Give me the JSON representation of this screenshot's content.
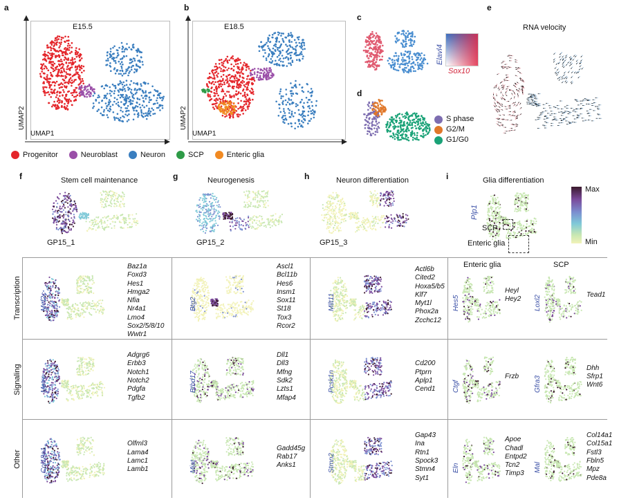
{
  "panels": {
    "a": {
      "letter": "a",
      "stage": "E15.5"
    },
    "b": {
      "letter": "b",
      "stage": "E18.5"
    },
    "c": {
      "letter": "c",
      "gene_y": "Elavl4",
      "gene_x": "Sox10"
    },
    "d": {
      "letter": "d",
      "phases": [
        {
          "name": "S phase",
          "color": "#7d6db0"
        },
        {
          "name": "G2/M",
          "color": "#e0782a"
        },
        {
          "name": "G1/G0",
          "color": "#1aa277"
        }
      ]
    },
    "e": {
      "letter": "e",
      "title": "RNA velocity"
    },
    "f": {
      "letter": "f",
      "title": "Stem cell maintenance",
      "program": "GP15_1"
    },
    "g": {
      "letter": "g",
      "title": "Neurogenesis",
      "program": "GP15_2"
    },
    "h": {
      "letter": "h",
      "title": "Neuron differentiation",
      "program": "GP15_3"
    },
    "i": {
      "letter": "i",
      "title": "Glia differentiation",
      "gene": "Plp1",
      "scp_label": "SCP",
      "eg_label": "Enteric glia"
    }
  },
  "axes": {
    "x": "UMAP1",
    "y": "UMAP2"
  },
  "legend": [
    {
      "name": "Progenitor",
      "color": "#e4262b"
    },
    {
      "name": "Neuroblast",
      "color": "#9a4fa8"
    },
    {
      "name": "Neuron",
      "color": "#3a7ebf"
    },
    {
      "name": "SCP",
      "color": "#2e9b47"
    },
    {
      "name": "Enteric glia",
      "color": "#f18a22"
    }
  ],
  "colorbar": {
    "max": "Max",
    "min": "Min"
  },
  "rows": [
    "Transcription",
    "Signaling",
    "Other"
  ],
  "glia_headers": {
    "enteric": "Enteric glia",
    "scp": "SCP"
  },
  "grid": {
    "transcription": [
      {
        "gene": "Mef2c",
        "list": [
          "Baz1a",
          "Foxd3",
          "Hes1",
          "Hmga2",
          "Nfia",
          "Nr4a1",
          "Lmo4",
          "Sox2/5/8/10",
          "Wwtr1"
        ]
      },
      {
        "gene": "Btg2",
        "list": [
          "Ascl1",
          "Bcl11b",
          "Hes6",
          "Insm1",
          "Sox11",
          "St18",
          "Tox3",
          "Rcor2"
        ]
      },
      {
        "gene": "Mllt11",
        "list": [
          "Actl6b",
          "Cited2",
          "Hoxa5/b5",
          "Klf7",
          "Myt1l",
          "Phox2a",
          "Zcchc12"
        ]
      },
      {
        "gene": "Hes5",
        "list": [
          "Heyl",
          "Hey2"
        ]
      },
      {
        "gene": "Loxl2",
        "list": [
          "Tead1"
        ]
      }
    ],
    "signaling": [
      {
        "gene": "Metrn",
        "list": [
          "Adgrg6",
          "Erbb3",
          "Notch1",
          "Notch2",
          "Pdgfa",
          "Tgfb2"
        ]
      },
      {
        "gene": "Btbd17",
        "list": [
          "Dll1",
          "Dll3",
          "Mfng",
          "Sdk2",
          "Lzts1",
          "Mfap4"
        ]
      },
      {
        "gene": "Pcsk1n",
        "list": [
          "Cd200",
          "Ptprn",
          "Aplp1",
          "Cend1"
        ]
      },
      {
        "gene": "Ctgf",
        "list": [
          "Frzb"
        ]
      },
      {
        "gene": "Gfra3",
        "list": [
          "Dhh",
          "Sfrp1",
          "Wnt6"
        ]
      }
    ],
    "other": [
      {
        "gene": "Col18a1",
        "list": [
          "Olfml3",
          "Lama4",
          "Lamc1",
          "Lamb1"
        ]
      },
      {
        "gene": "Miat",
        "list": [
          "Gadd45g",
          "Rab17",
          "Anks1"
        ]
      },
      {
        "gene": "Stmn2",
        "list": [
          "Gap43",
          "Ina",
          "Rtn1",
          "Spock3",
          "Stmn4",
          "Syt1"
        ]
      },
      {
        "gene": "Eln",
        "list": [
          "Apoe",
          "Chadl",
          "Entpd2",
          "Tcn2",
          "Timp3"
        ]
      },
      {
        "gene": "Mal",
        "list": [
          "Col14a1",
          "Col15a1",
          "Fstl3",
          "Fbln5",
          "Mpz",
          "Pde8a"
        ]
      }
    ]
  }
}
